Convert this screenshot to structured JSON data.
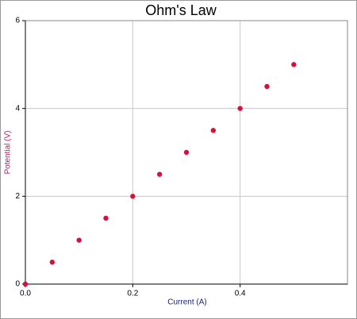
{
  "chart_data": {
    "type": "scatter",
    "title": "Ohm's Law",
    "x_label": "Current (A)",
    "y_label": "Potential (V)",
    "x": [
      0,
      0.05,
      0.1,
      0.15,
      0.2,
      0.25,
      0.3,
      0.35,
      0.4,
      0.45,
      0.5
    ],
    "values": [
      0,
      0.5,
      1,
      1.5,
      2,
      2.5,
      3,
      3.5,
      4,
      4.5,
      5
    ],
    "color": "#d8103e",
    "xlim": [
      0,
      0.6
    ],
    "xticks": [
      {
        "value": 0,
        "label": "0.0"
      },
      0.2,
      0.4
    ],
    "ylim": [
      0,
      6
    ],
    "yticks": [
      0,
      2,
      4,
      6
    ],
    "grid": true
  }
}
